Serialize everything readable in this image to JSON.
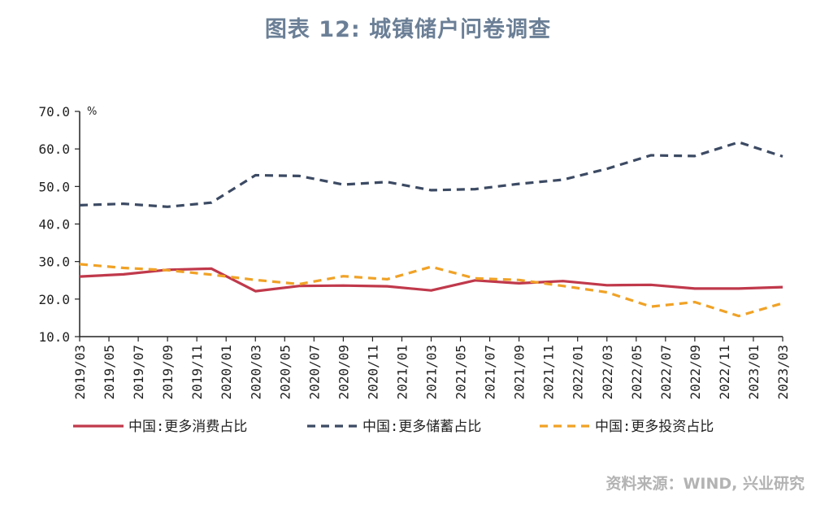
{
  "page": {
    "title": "图表 12: 城镇储户问卷调查",
    "source": "资料来源：WIND, 兴业研究"
  },
  "chart_data": {
    "type": "line",
    "title": "图表 12: 城镇储户问卷调查",
    "ylabel": "%",
    "ylim": [
      10,
      70
    ],
    "yticks": [
      "10.0",
      "20.0",
      "30.0",
      "40.0",
      "50.0",
      "60.0",
      "70.0"
    ],
    "grid": false,
    "legend_position": "bottom",
    "x": [
      "2019/03",
      "2019/06",
      "2019/09",
      "2019/12",
      "2020/03",
      "2020/06",
      "2020/09",
      "2020/12",
      "2021/03",
      "2021/06",
      "2021/09",
      "2021/12",
      "2022/03",
      "2022/06",
      "2022/09",
      "2022/12",
      "2023/03"
    ],
    "x_tick_labels": [
      "2019/03",
      "2019/05",
      "2019/07",
      "2019/09",
      "2019/11",
      "2020/01",
      "2020/03",
      "2020/05",
      "2020/07",
      "2020/09",
      "2020/11",
      "2021/01",
      "2021/03",
      "2021/05",
      "2021/07",
      "2021/09",
      "2021/11",
      "2022/01",
      "2022/03",
      "2022/05",
      "2022/07",
      "2022/09",
      "2022/11",
      "2023/01",
      "2023/03"
    ],
    "series": [
      {
        "name": "中国:更多消费占比",
        "color": "#c0394b",
        "style": "solid",
        "values": [
          26.0,
          26.6,
          27.8,
          28.1,
          22.1,
          23.5,
          23.6,
          23.4,
          22.3,
          25.0,
          24.2,
          24.8,
          23.7,
          23.8,
          22.8,
          22.8,
          23.2
        ]
      },
      {
        "name": "中国:更多储蓄占比",
        "color": "#3c4a63",
        "style": "dashed",
        "values": [
          45.0,
          45.4,
          44.6,
          45.7,
          53.0,
          52.8,
          50.5,
          51.2,
          49.0,
          49.3,
          50.7,
          51.8,
          54.7,
          58.3,
          58.1,
          61.8,
          58.0
        ]
      },
      {
        "name": "中国:更多投资占比",
        "color": "#f0a226",
        "style": "dashed",
        "values": [
          29.3,
          28.3,
          27.7,
          26.5,
          25.1,
          24.0,
          26.1,
          25.3,
          28.6,
          25.5,
          25.1,
          23.5,
          21.8,
          18.0,
          19.2,
          15.5,
          18.9
        ]
      }
    ]
  }
}
